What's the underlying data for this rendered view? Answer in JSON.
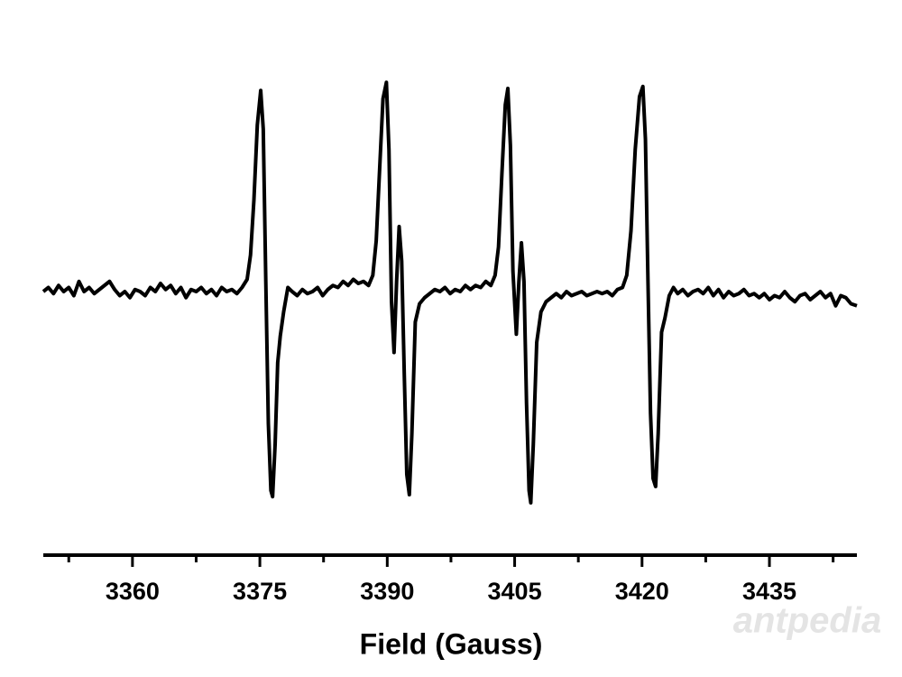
{
  "chart_data": {
    "type": "line",
    "xlabel": "Field (Gauss)",
    "color": "#000000",
    "watermark": "antpedia",
    "xlim": [
      3349.5,
      3445.3
    ],
    "xticks": [
      3360,
      3375,
      3390,
      3405,
      3420,
      3435
    ],
    "xminorticks": [
      3352.5,
      3367.5,
      3382.5,
      3397.5,
      3412.5,
      3427.5,
      3442.5
    ],
    "ylim": [
      -1.2,
      1.2
    ],
    "x": [
      3349.5,
      3350.1,
      3350.7,
      3351.3,
      3351.9,
      3352.5,
      3353.1,
      3353.7,
      3354.3,
      3354.9,
      3355.5,
      3356.1,
      3356.7,
      3357.3,
      3357.9,
      3358.5,
      3359.1,
      3359.7,
      3360.3,
      3360.9,
      3361.5,
      3362.1,
      3362.7,
      3363.3,
      3363.9,
      3364.5,
      3365.1,
      3365.7,
      3366.3,
      3366.9,
      3367.5,
      3368.1,
      3368.7,
      3369.3,
      3369.9,
      3370.5,
      3371.1,
      3371.7,
      3372.3,
      3372.9,
      3373.5,
      3373.9,
      3374.3,
      3374.7,
      3375.1,
      3375.4,
      3375.7,
      3376.0,
      3376.3,
      3376.5,
      3376.8,
      3377.1,
      3377.4,
      3377.8,
      3378.3,
      3378.8,
      3379.4,
      3380.0,
      3380.6,
      3381.2,
      3381.8,
      3382.4,
      3383.0,
      3383.6,
      3384.2,
      3384.8,
      3385.4,
      3386.0,
      3386.6,
      3387.2,
      3387.8,
      3388.3,
      3388.7,
      3389.1,
      3389.5,
      3389.9,
      3390.2,
      3390.5,
      3390.8,
      3391.1,
      3391.4,
      3391.7,
      3392.0,
      3392.3,
      3392.6,
      3392.9,
      3393.3,
      3393.8,
      3394.4,
      3395.0,
      3395.6,
      3396.2,
      3396.8,
      3397.4,
      3398.0,
      3398.6,
      3399.2,
      3399.8,
      3400.4,
      3401.0,
      3401.6,
      3402.2,
      3402.7,
      3403.1,
      3403.5,
      3403.9,
      3404.2,
      3404.5,
      3404.8,
      3405.2,
      3405.5,
      3405.8,
      3406.1,
      3406.4,
      3406.7,
      3406.9,
      3407.2,
      3407.6,
      3408.1,
      3408.7,
      3409.3,
      3409.9,
      3410.5,
      3411.1,
      3411.7,
      3412.3,
      3412.9,
      3413.5,
      3414.1,
      3414.7,
      3415.3,
      3415.9,
      3416.5,
      3417.1,
      3417.7,
      3418.2,
      3418.7,
      3419.2,
      3419.7,
      3420.1,
      3420.4,
      3420.7,
      3421.0,
      3421.3,
      3421.6,
      3421.9,
      3422.3,
      3422.7,
      3423.2,
      3423.7,
      3424.2,
      3424.8,
      3425.4,
      3426.0,
      3426.6,
      3427.2,
      3427.8,
      3428.4,
      3429.0,
      3429.6,
      3430.2,
      3430.8,
      3431.4,
      3432.0,
      3432.6,
      3433.2,
      3433.8,
      3434.4,
      3435.0,
      3435.6,
      3436.2,
      3436.8,
      3437.4,
      3438.0,
      3438.6,
      3439.2,
      3439.8,
      3440.4,
      3441.0,
      3441.6,
      3442.2,
      3442.8,
      3443.4,
      3444.0,
      3444.6,
      3445.3
    ],
    "y": [
      0.0,
      0.02,
      -0.01,
      0.03,
      0.0,
      0.02,
      -0.02,
      0.05,
      0.0,
      0.02,
      -0.01,
      0.01,
      0.03,
      0.05,
      0.01,
      -0.02,
      0.0,
      -0.03,
      0.01,
      0.0,
      -0.02,
      0.02,
      0.0,
      0.04,
      0.01,
      0.03,
      -0.01,
      0.02,
      -0.03,
      0.01,
      0.0,
      0.02,
      -0.01,
      0.01,
      -0.02,
      0.02,
      0.0,
      0.01,
      -0.01,
      0.02,
      0.06,
      0.18,
      0.45,
      0.82,
      0.99,
      0.8,
      0.05,
      -0.65,
      -0.98,
      -1.01,
      -0.75,
      -0.35,
      -0.22,
      -0.1,
      0.02,
      0.0,
      -0.02,
      0.01,
      -0.01,
      0.0,
      0.02,
      -0.02,
      0.01,
      0.03,
      0.02,
      0.05,
      0.03,
      0.06,
      0.04,
      0.05,
      0.03,
      0.08,
      0.25,
      0.6,
      0.95,
      1.03,
      0.7,
      -0.05,
      -0.3,
      0.05,
      0.32,
      0.15,
      -0.4,
      -0.9,
      -1.0,
      -0.7,
      -0.15,
      -0.06,
      -0.03,
      -0.01,
      0.01,
      0.0,
      0.02,
      -0.01,
      0.01,
      0.0,
      0.03,
      0.01,
      0.03,
      0.02,
      0.05,
      0.03,
      0.08,
      0.22,
      0.58,
      0.92,
      1.0,
      0.72,
      0.1,
      -0.21,
      0.05,
      0.24,
      0.05,
      -0.55,
      -0.98,
      -1.04,
      -0.75,
      -0.25,
      -0.1,
      -0.05,
      -0.03,
      -0.01,
      -0.03,
      0.0,
      -0.02,
      -0.01,
      0.0,
      -0.02,
      -0.01,
      0.0,
      -0.01,
      0.0,
      -0.02,
      0.01,
      0.02,
      0.08,
      0.3,
      0.7,
      0.96,
      1.01,
      0.75,
      0.05,
      -0.6,
      -0.92,
      -0.96,
      -0.7,
      -0.2,
      -0.13,
      -0.02,
      0.02,
      -0.01,
      0.01,
      -0.02,
      0.0,
      0.01,
      -0.01,
      0.02,
      -0.02,
      0.01,
      -0.03,
      0.0,
      -0.02,
      -0.01,
      0.01,
      -0.02,
      -0.01,
      -0.03,
      -0.01,
      -0.04,
      -0.02,
      -0.03,
      0.0,
      -0.03,
      -0.05,
      -0.02,
      -0.01,
      -0.04,
      -0.02,
      0.0,
      -0.03,
      -0.01,
      -0.07,
      -0.02,
      -0.03,
      -0.06,
      -0.07
    ]
  }
}
